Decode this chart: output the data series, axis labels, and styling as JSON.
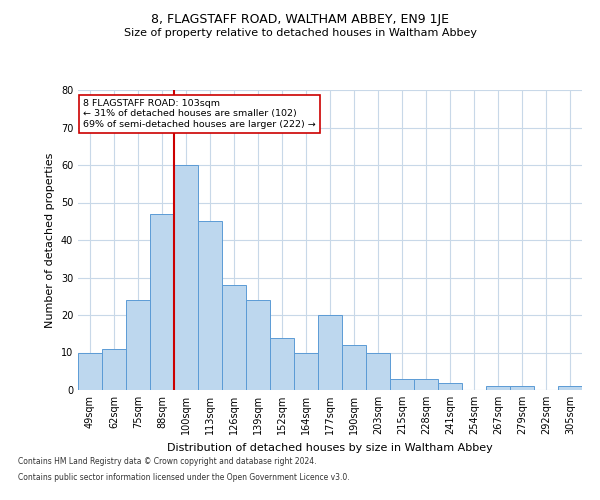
{
  "title": "8, FLAGSTAFF ROAD, WALTHAM ABBEY, EN9 1JE",
  "subtitle": "Size of property relative to detached houses in Waltham Abbey",
  "xlabel": "Distribution of detached houses by size in Waltham Abbey",
  "ylabel": "Number of detached properties",
  "categories": [
    "49sqm",
    "62sqm",
    "75sqm",
    "88sqm",
    "100sqm",
    "113sqm",
    "126sqm",
    "139sqm",
    "152sqm",
    "164sqm",
    "177sqm",
    "190sqm",
    "203sqm",
    "215sqm",
    "228sqm",
    "241sqm",
    "254sqm",
    "267sqm",
    "279sqm",
    "292sqm",
    "305sqm"
  ],
  "values": [
    10,
    11,
    24,
    47,
    60,
    45,
    28,
    24,
    14,
    10,
    20,
    12,
    10,
    3,
    3,
    2,
    0,
    1,
    1,
    0,
    1
  ],
  "bar_color": "#BDD7EE",
  "bar_edge_color": "#5B9BD5",
  "vline_color": "#CC0000",
  "vline_x_index": 4,
  "annotation_text": "8 FLAGSTAFF ROAD: 103sqm\n← 31% of detached houses are smaller (102)\n69% of semi-detached houses are larger (222) →",
  "annotation_box_color": "#ffffff",
  "annotation_box_edge": "#CC0000",
  "ylim": [
    0,
    80
  ],
  "yticks": [
    0,
    10,
    20,
    30,
    40,
    50,
    60,
    70,
    80
  ],
  "background_color": "#ffffff",
  "grid_color": "#c8d8e8",
  "title_fontsize": 9,
  "subtitle_fontsize": 8,
  "ylabel_fontsize": 8,
  "xlabel_fontsize": 8,
  "tick_fontsize": 7,
  "footer1": "Contains HM Land Registry data © Crown copyright and database right 2024.",
  "footer2": "Contains public sector information licensed under the Open Government Licence v3.0.",
  "footer_fontsize": 5.5
}
